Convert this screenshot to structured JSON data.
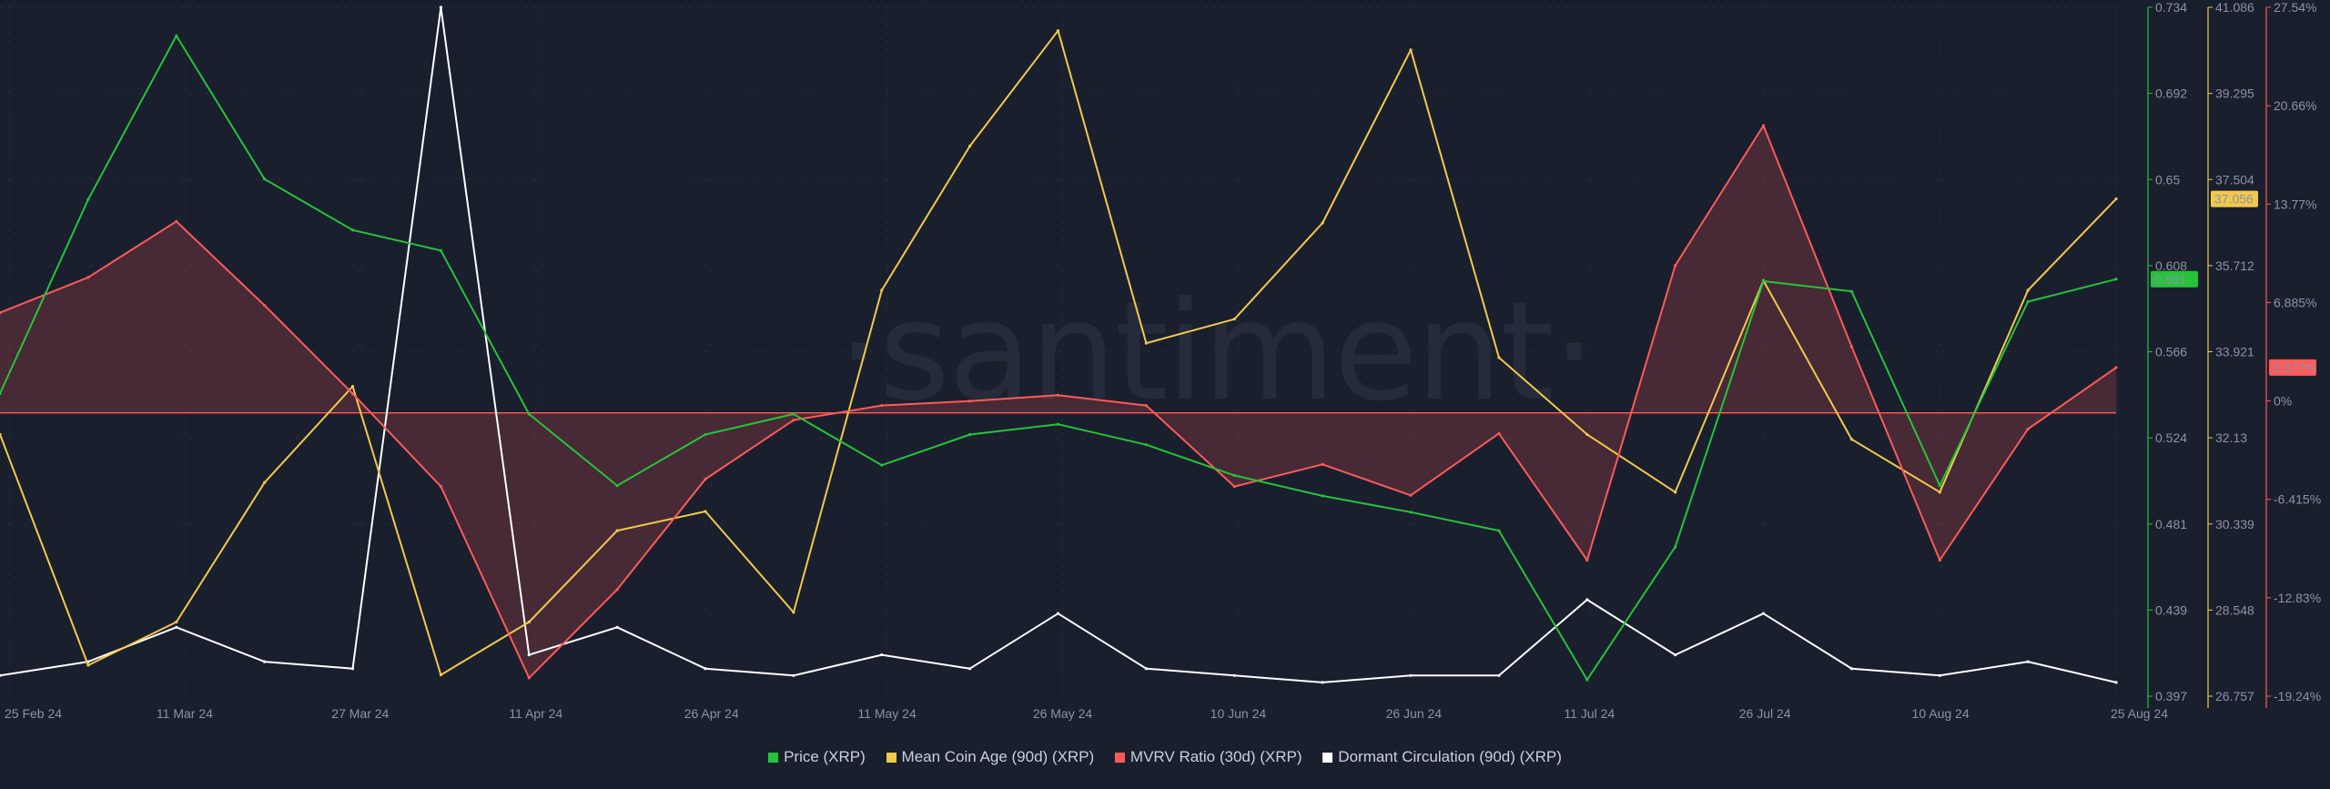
{
  "brand": {
    "watermark": "·santiment·"
  },
  "legend": [
    {
      "label": "Price (XRP)",
      "color": "#26c33a"
    },
    {
      "label": "Mean Coin Age (90d) (XRP)",
      "color": "#f2c94c"
    },
    {
      "label": "MVRV Ratio (30d) (XRP)",
      "color": "#ff5a5a"
    },
    {
      "label": "Dormant Circulation (90d) (XRP)",
      "color": "#ffffff"
    }
  ],
  "current_values": {
    "price": "0.601",
    "mean_coin_age": "37.056",
    "mvrv": "3.077%"
  },
  "chart_data": {
    "type": "line",
    "x_ticks": [
      "25 Feb 24",
      "11 Mar 24",
      "27 Mar 24",
      "11 Apr 24",
      "26 Apr 24",
      "11 May 24",
      "26 May 24",
      "10 Jun 24",
      "26 Jun 24",
      "11 Jul 24",
      "26 Jul 24",
      "10 Aug 24",
      "25 Aug 24"
    ],
    "x": [
      "25 Feb 24",
      "3 Mar 24",
      "11 Mar 24",
      "19 Mar 24",
      "27 Mar 24",
      "4 Apr 24",
      "11 Apr 24",
      "18 Apr 24",
      "26 Apr 24",
      "3 May 24",
      "11 May 24",
      "18 May 24",
      "26 May 24",
      "3 Jun 24",
      "10 Jun 24",
      "18 Jun 24",
      "26 Jun 24",
      "3 Jul 24",
      "11 Jul 24",
      "18 Jul 24",
      "26 Jul 24",
      "3 Aug 24",
      "10 Aug 24",
      "17 Aug 24",
      "25 Aug 24"
    ],
    "axes": {
      "price": {
        "ticks": [
          "0.734",
          "0.692",
          "0.65",
          "0.608",
          "0.566",
          "0.524",
          "0.481",
          "0.439",
          "0.397"
        ],
        "range": [
          0.397,
          0.734
        ],
        "color": "#26c33a"
      },
      "mean_coin_age": {
        "ticks": [
          "41.086",
          "39.295",
          "37.504",
          "35.712",
          "33.921",
          "32.13",
          "30.339",
          "28.548",
          "26.757"
        ],
        "range": [
          26.757,
          41.086
        ],
        "color": "#f2c94c"
      },
      "mvrv": {
        "ticks": [
          "27.54%",
          "20.66%",
          "13.77%",
          "6.885%",
          "0%",
          "-6.415%",
          "-12.83%",
          "-19.24%"
        ],
        "range": [
          -19.24,
          27.54
        ],
        "color": "#ff5a5a"
      },
      "dormant": {
        "range": [
          0,
          1
        ]
      }
    },
    "series": [
      {
        "name": "Price (XRP)",
        "axis": "price",
        "color": "#26c33a",
        "values": [
          0.545,
          0.64,
          0.72,
          0.65,
          0.625,
          0.615,
          0.535,
          0.5,
          0.525,
          0.535,
          0.51,
          0.525,
          0.53,
          0.52,
          0.505,
          0.495,
          0.487,
          0.478,
          0.405,
          0.47,
          0.6,
          0.595,
          0.5,
          0.59,
          0.601
        ]
      },
      {
        "name": "Mean Coin Age (90d) (XRP)",
        "axis": "mean_coin_age",
        "color": "#f2c94c",
        "values": [
          32.2,
          27.4,
          28.3,
          31.2,
          33.2,
          27.2,
          28.3,
          30.2,
          30.6,
          28.5,
          35.2,
          38.2,
          40.6,
          34.1,
          34.6,
          36.6,
          40.2,
          33.8,
          32.2,
          31.0,
          35.4,
          32.1,
          31.0,
          35.2,
          37.1
        ]
      },
      {
        "name": "MVRV Ratio (30d) (XRP)",
        "axis": "mvrv",
        "color": "#ff5a5a",
        "values": [
          6.8,
          9.2,
          13.0,
          7.3,
          1.3,
          -5.0,
          -18.0,
          -12.0,
          -4.5,
          -0.5,
          0.5,
          0.8,
          1.2,
          0.5,
          -5.0,
          -3.5,
          -5.6,
          -1.4,
          -10.0,
          10.0,
          19.5,
          4.5,
          -10.0,
          -1.1,
          3.077
        ]
      },
      {
        "name": "Dormant Circulation (90d) (XRP)",
        "axis": "dormant",
        "color": "#ffffff",
        "values": [
          0.03,
          0.05,
          0.1,
          0.05,
          0.04,
          1.0,
          0.06,
          0.1,
          0.04,
          0.03,
          0.06,
          0.04,
          0.12,
          0.04,
          0.03,
          0.02,
          0.03,
          0.03,
          0.14,
          0.06,
          0.12,
          0.04,
          0.03,
          0.05,
          0.02
        ]
      }
    ],
    "baseline": {
      "series": "MVRV Ratio (30d) (XRP)",
      "value": 0,
      "fill": "between line and 0"
    },
    "grid": true,
    "legend_position": "bottom"
  }
}
